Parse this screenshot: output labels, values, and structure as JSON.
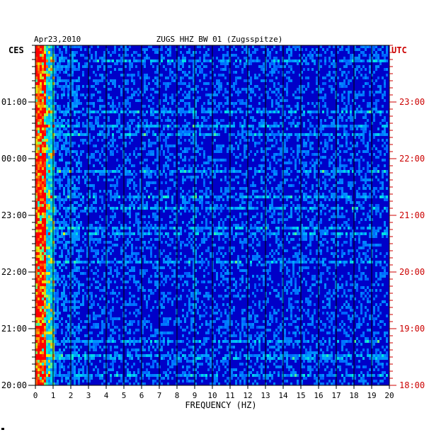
{
  "chart_data": {
    "type": "heatmap",
    "title": "ZUGS HHZ BW 01 (Zugsspitze)",
    "date": "Apr23,2010",
    "xlabel": "FREQUENCY (HZ)",
    "xlim": [
      0,
      20
    ],
    "x_ticks": [
      "0",
      "1",
      "2",
      "3",
      "4",
      "5",
      "6",
      "7",
      "8",
      "9",
      "10",
      "11",
      "12",
      "13",
      "14",
      "15",
      "16",
      "17",
      "18",
      "19",
      "20"
    ],
    "left_axis": {
      "label": "CES",
      "ticks": [
        "01:00",
        "00:00",
        "23:00",
        "22:00",
        "21:00",
        "20:00"
      ]
    },
    "right_axis": {
      "label": "UTC",
      "ticks": [
        "23:00",
        "22:00",
        "21:00",
        "20:00",
        "19:00",
        "18:00"
      ]
    },
    "colors": {
      "background": "#0000c8",
      "low": "#0030ff",
      "mid": "#00d0ff",
      "high": "#ffff00",
      "peak": "#ff0000",
      "utc_text": "#cc0000",
      "grid": "#000000"
    }
  }
}
